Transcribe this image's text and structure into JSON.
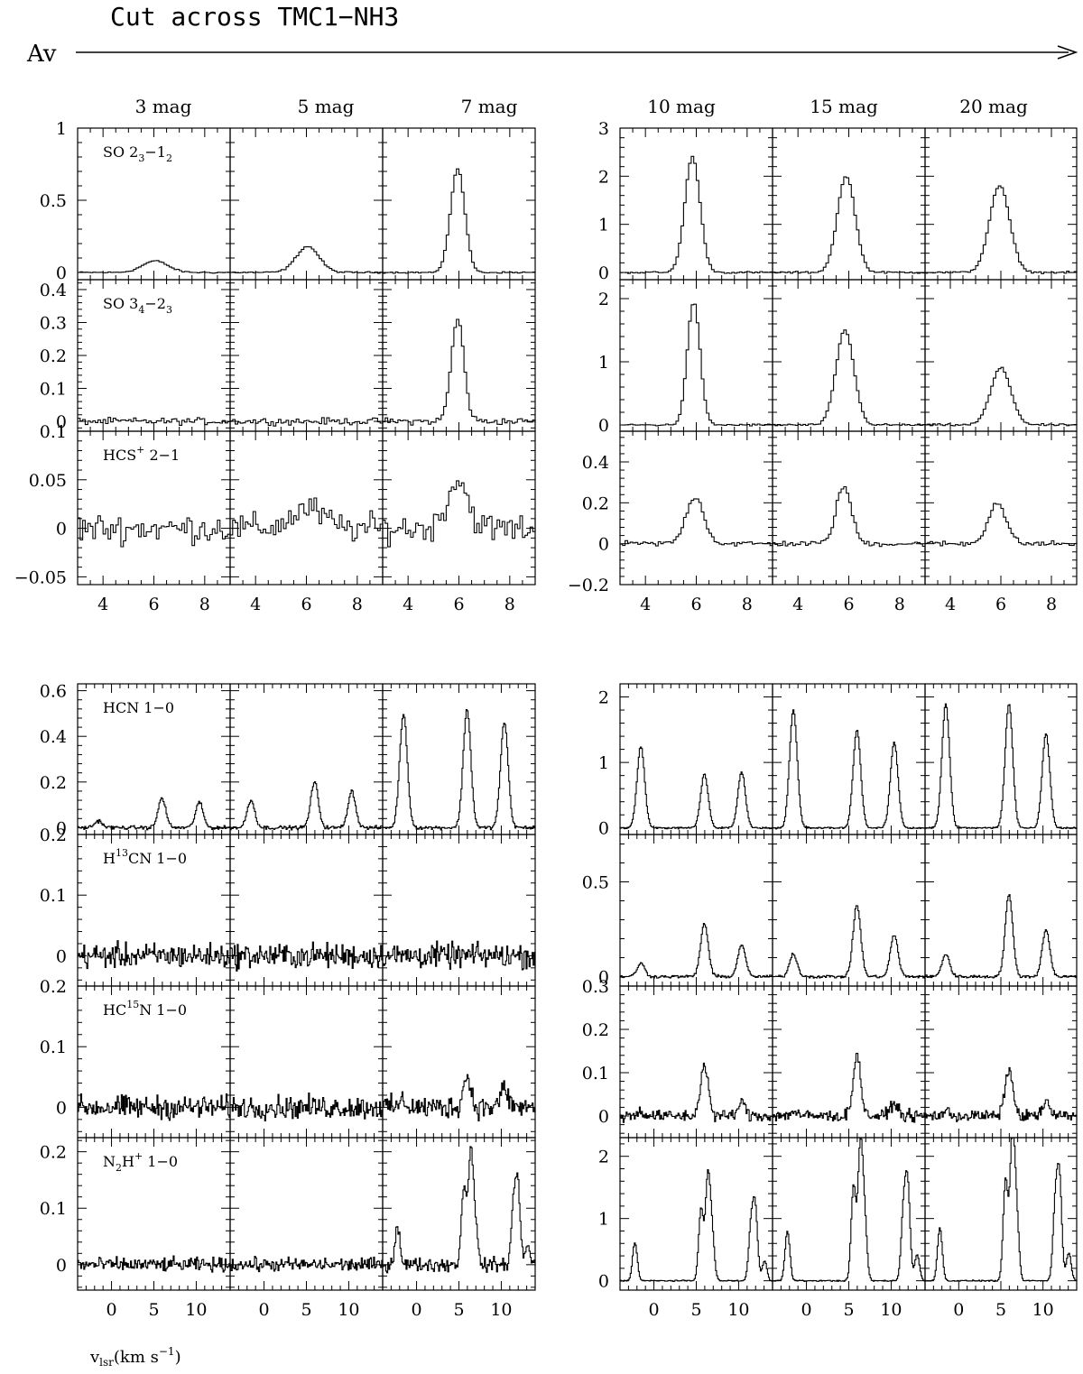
{
  "title": "Cut across TMC1−NH3",
  "av_label": "Av",
  "x_axis_label": "v",
  "x_axis_label_sub": "lsr",
  "x_axis_label_rest": "(km s",
  "x_axis_label_sup": "−1",
  "x_axis_label_end": ")",
  "columns_left": [
    "3 mag",
    "5 mag",
    "7 mag"
  ],
  "columns_right": [
    "10 mag",
    "15 mag",
    "20 mag"
  ],
  "colors": {
    "line": "#000000",
    "background": "#ffffff"
  },
  "chart_data": [
    {
      "type": "line",
      "panel_group": "top-left",
      "xlim": [
        3,
        9
      ],
      "x_ticks": [
        "4",
        "6",
        "8"
      ],
      "rows": [
        {
          "label": "SO 2",
          "sub": "3",
          "mid": "−1",
          "sub2": "2",
          "ylim": [
            -0.05,
            1.0
          ],
          "y_ticks": [
            "0",
            "0.5",
            "1"
          ],
          "y_tick_values": [
            0,
            0.5,
            1
          ],
          "columns": [
            {
              "peak": 0.08,
              "center": 6.0,
              "width": 0.5
            },
            {
              "peak": 0.18,
              "center": 6.0,
              "width": 0.45
            },
            {
              "peak": 0.72,
              "center": 5.9,
              "width": 0.28
            }
          ]
        },
        {
          "label": "SO 3",
          "sub": "4",
          "mid": "−2",
          "sub2": "3",
          "ylim": [
            -0.03,
            0.43
          ],
          "y_ticks": [
            "0",
            "0.1",
            "0.2",
            "0.3",
            "0.4"
          ],
          "y_tick_values": [
            0,
            0.1,
            0.2,
            0.3,
            0.4
          ],
          "columns": [
            {
              "peak": 0.0,
              "center": 6.0,
              "width": 0.4
            },
            {
              "peak": 0.0,
              "center": 6.0,
              "width": 0.4
            },
            {
              "peak": 0.31,
              "center": 5.9,
              "width": 0.25
            }
          ]
        },
        {
          "label": "HCS",
          "sup": "+",
          "rest": " 2−1",
          "ylim": [
            -0.058,
            0.1
          ],
          "y_ticks": [
            "−0.05",
            "0",
            "0.05",
            "0.1"
          ],
          "y_tick_values": [
            -0.05,
            0,
            0.05,
            0.1
          ],
          "columns": [
            {
              "peak": 0.0,
              "center": 6.0,
              "width": 0.4
            },
            {
              "peak": 0.02,
              "center": 6.0,
              "width": 0.6
            },
            {
              "peak": 0.05,
              "center": 5.9,
              "width": 0.4
            }
          ]
        }
      ]
    },
    {
      "type": "line",
      "panel_group": "top-right",
      "xlim": [
        3,
        9
      ],
      "x_ticks": [
        "4",
        "6",
        "8"
      ],
      "rows": [
        {
          "ylim": [
            -0.15,
            3.0
          ],
          "y_ticks": [
            "0",
            "1",
            "2",
            "3"
          ],
          "y_tick_values": [
            0,
            1,
            2,
            3
          ],
          "columns": [
            {
              "peak": 2.4,
              "center": 5.8,
              "width": 0.3
            },
            {
              "peak": 2.0,
              "center": 5.85,
              "width": 0.35
            },
            {
              "peak": 1.8,
              "center": 5.9,
              "width": 0.4
            }
          ]
        },
        {
          "ylim": [
            -0.1,
            2.3
          ],
          "y_ticks": [
            "0",
            "1",
            "2"
          ],
          "y_tick_values": [
            0,
            1,
            2
          ],
          "columns": [
            {
              "peak": 1.95,
              "center": 5.85,
              "width": 0.25
            },
            {
              "peak": 1.5,
              "center": 5.8,
              "width": 0.35
            },
            {
              "peak": 0.9,
              "center": 5.95,
              "width": 0.4
            }
          ]
        },
        {
          "ylim": [
            -0.2,
            0.55
          ],
          "y_ticks": [
            "−0.2",
            "0",
            "0.2",
            "0.4"
          ],
          "y_tick_values": [
            -0.2,
            0,
            0.2,
            0.4
          ],
          "columns": [
            {
              "peak": 0.23,
              "center": 5.9,
              "width": 0.35
            },
            {
              "peak": 0.28,
              "center": 5.75,
              "width": 0.3
            },
            {
              "peak": 0.2,
              "center": 5.8,
              "width": 0.35
            }
          ]
        }
      ]
    },
    {
      "type": "line",
      "panel_group": "bottom-left",
      "xlim": [
        -4,
        14
      ],
      "x_ticks": [
        "0",
        "5",
        "10"
      ],
      "rows": [
        {
          "label": "HCN 1−0",
          "ylim": [
            -0.03,
            0.63
          ],
          "y_ticks": [
            "0",
            "0.2",
            "0.4",
            "0.6"
          ],
          "y_tick_values": [
            0,
            0.2,
            0.4,
            0.6
          ],
          "columns": [
            {
              "peaks": [
                0.03,
                0.13,
                0.11
              ]
            },
            {
              "peaks": [
                0.12,
                0.2,
                0.16
              ]
            },
            {
              "peaks": [
                0.5,
                0.52,
                0.46
              ]
            }
          ]
        },
        {
          "label": "H",
          "sup": "13",
          "rest": "CN 1−0",
          "ylim": [
            -0.05,
            0.2
          ],
          "y_ticks": [
            "0",
            "0.1",
            "0.2"
          ],
          "y_tick_values": [
            0,
            0.1,
            0.2
          ],
          "columns": [
            {
              "peaks": [
                0,
                0,
                0
              ]
            },
            {
              "peaks": [
                0,
                0,
                0
              ]
            },
            {
              "peaks": [
                0,
                0,
                0
              ]
            }
          ]
        },
        {
          "label": "HC",
          "sup": "15",
          "rest": "N 1−0",
          "ylim": [
            -0.05,
            0.2
          ],
          "y_ticks": [
            "0",
            "0.1",
            "0.2"
          ],
          "y_tick_values": [
            0,
            0.1,
            0.2
          ],
          "columns": [
            {
              "peaks": [
                0,
                0,
                0
              ]
            },
            {
              "peaks": [
                0,
                0,
                0
              ]
            },
            {
              "peaks": [
                0.01,
                0.05,
                0.03
              ]
            }
          ]
        },
        {
          "label": "N",
          "sub": "2",
          "mid": "H",
          "sup": "+",
          "rest": " 1−0",
          "ylim": [
            -0.045,
            0.225
          ],
          "y_ticks": [
            "0",
            "0.1",
            "0.2"
          ],
          "y_tick_values": [
            0,
            0.1,
            0.2
          ],
          "columns": [
            {
              "n2h": 0.0
            },
            {
              "n2h": 0.0
            },
            {
              "n2h": 0.19
            }
          ]
        }
      ]
    },
    {
      "type": "line",
      "panel_group": "bottom-right",
      "xlim": [
        -4,
        14
      ],
      "x_ticks": [
        "0",
        "5",
        "10"
      ],
      "rows": [
        {
          "ylim": [
            -0.1,
            2.2
          ],
          "y_ticks": [
            "0",
            "1",
            "2"
          ],
          "y_tick_values": [
            0,
            1,
            2
          ],
          "columns": [
            {
              "peaks": [
                1.25,
                0.82,
                0.85
              ]
            },
            {
              "peaks": [
                1.8,
                1.5,
                1.3
              ]
            },
            {
              "peaks": [
                1.9,
                1.9,
                1.45
              ]
            }
          ]
        },
        {
          "ylim": [
            -0.05,
            0.75
          ],
          "y_ticks": [
            "0",
            "0.5"
          ],
          "y_tick_values": [
            0,
            0.5
          ],
          "columns": [
            {
              "peaks": [
                0.07,
                0.28,
                0.17
              ]
            },
            {
              "peaks": [
                0.12,
                0.38,
                0.22
              ]
            },
            {
              "peaks": [
                0.12,
                0.43,
                0.25
              ]
            }
          ]
        },
        {
          "ylim": [
            -0.05,
            0.3
          ],
          "y_ticks": [
            "0",
            "0.1",
            "0.2",
            "0.3"
          ],
          "y_tick_values": [
            0,
            0.1,
            0.2,
            0.3
          ],
          "columns": [
            {
              "peaks": [
                0.01,
                0.12,
                0.03
              ]
            },
            {
              "peaks": [
                0.01,
                0.14,
                0.03
              ]
            },
            {
              "peaks": [
                0.01,
                0.11,
                0.03
              ]
            }
          ]
        },
        {
          "ylim": [
            -0.15,
            2.3
          ],
          "y_ticks": [
            "0",
            "1",
            "2"
          ],
          "y_tick_values": [
            0,
            1,
            2
          ],
          "columns": [
            {
              "n2h": 1.6
            },
            {
              "n2h": 2.1
            },
            {
              "n2h": 2.25
            }
          ]
        }
      ]
    }
  ]
}
